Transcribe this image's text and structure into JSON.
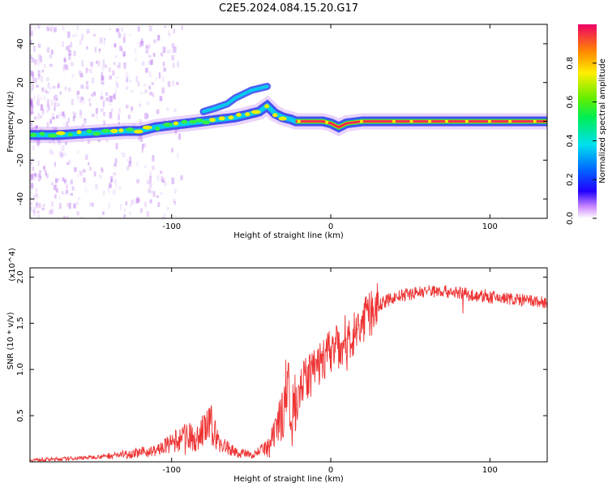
{
  "title": "C2E5.2024.084.15.20.G17",
  "colors": {
    "trace": "#ee3333",
    "band": "#3344ee",
    "halo": "#aa55ee",
    "track": "#ee2255"
  },
  "chart_data": [
    {
      "type": "heatmap",
      "title": "C2E5.2024.084.15.20.G17",
      "xlabel": "Height of straight line (km)",
      "ylabel": "Frequency (Hz)",
      "xlim": [
        -189,
        136
      ],
      "ylim": [
        -50,
        50
      ],
      "xticks": [
        "-100",
        "0",
        "100"
      ],
      "xtick_values": [
        -100,
        0,
        100
      ],
      "yticks": [
        "-40",
        "-20",
        "0",
        "20",
        "40"
      ],
      "ytick_values": [
        -40,
        -20,
        0,
        20,
        40
      ],
      "colorbar": {
        "label": "Normalized spectral amplitude",
        "range": [
          0,
          1
        ],
        "ticks": [
          "0.0",
          "0.2",
          "0.4",
          "0.6",
          "0.8"
        ],
        "tick_values": [
          0,
          0.2,
          0.4,
          0.6,
          0.8
        ]
      },
      "ridge": {
        "x": [
          -189,
          -170,
          -150,
          -130,
          -120,
          -110,
          -100,
          -90,
          -80,
          -70,
          -60,
          -50,
          -45,
          -40,
          -35,
          -30,
          -25,
          -22,
          -15,
          -5,
          0,
          5,
          10,
          20,
          50,
          136
        ],
        "y": [
          -7,
          -7,
          -6,
          -5,
          -5,
          -3,
          -2,
          -1,
          0,
          1,
          2,
          4,
          5,
          8,
          4,
          2,
          1,
          0,
          0,
          0,
          -1,
          -3,
          -1,
          0,
          0,
          0
        ]
      },
      "branch": {
        "x": [
          -80,
          -72,
          -65,
          -60,
          -55,
          -50,
          -45,
          -40
        ],
        "y": [
          5,
          7,
          9,
          12,
          14,
          16,
          17,
          18
        ]
      }
    },
    {
      "type": "line",
      "xlabel": "Height of straight line (km)",
      "ylabel": "SNR (10 * v/v)",
      "y_multiplier": "(x10^4)",
      "xlim": [
        -189,
        136
      ],
      "ylim": [
        0,
        2.1
      ],
      "xticks": [
        "-100",
        "0",
        "100"
      ],
      "xtick_values": [
        -100,
        0,
        100
      ],
      "yticks": [
        "0.5",
        "1.0",
        "1.5",
        "2.0"
      ],
      "ytick_values": [
        0.5,
        1.0,
        1.5,
        2.0
      ],
      "series": [
        {
          "x": [
            -189,
            -170,
            -150,
            -130,
            -110,
            -100,
            -95,
            -90,
            -85,
            -80,
            -75,
            -70,
            -60,
            -50,
            -40,
            -35,
            -30,
            -27,
            -25,
            -20,
            -15,
            -10,
            -5,
            0,
            5,
            10,
            15,
            20,
            25,
            30,
            40,
            50,
            60,
            70,
            80,
            90,
            100,
            110,
            120,
            136
          ],
          "y": [
            0.02,
            0.03,
            0.05,
            0.08,
            0.12,
            0.2,
            0.25,
            0.3,
            0.22,
            0.35,
            0.4,
            0.2,
            0.1,
            0.08,
            0.15,
            0.3,
            0.55,
            0.9,
            0.6,
            0.8,
            0.9,
            1.0,
            1.1,
            1.2,
            1.25,
            1.3,
            1.4,
            1.5,
            1.6,
            1.7,
            1.78,
            1.82,
            1.85,
            1.85,
            1.83,
            1.8,
            1.78,
            1.77,
            1.75,
            1.72
          ]
        }
      ]
    }
  ]
}
